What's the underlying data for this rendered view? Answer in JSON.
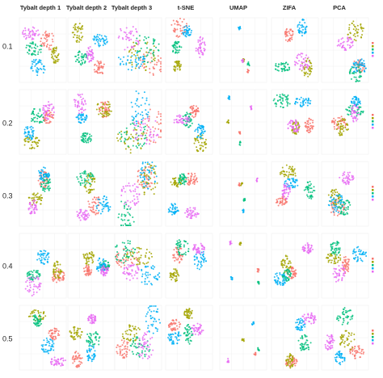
{
  "column_headers": [
    "Tybalt depth 1",
    "Tybalt depth 2",
    "Tybalt depth 3",
    "t-SNE",
    "UMAP",
    "ZIFA",
    "PCA"
  ],
  "row_labels": [
    "0.1",
    "0.2",
    "0.3",
    "0.4",
    "0.5"
  ]
}
